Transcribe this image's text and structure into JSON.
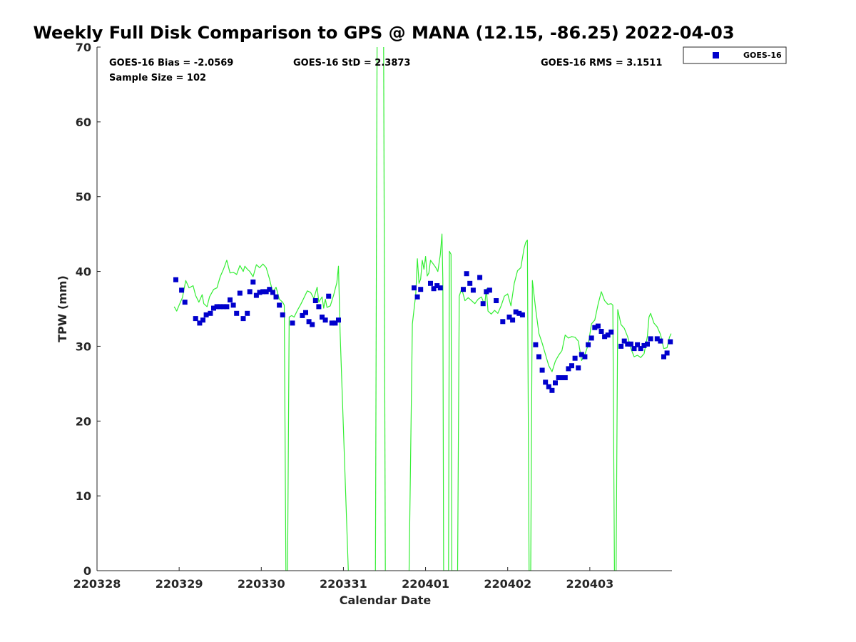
{
  "chart_data": {
    "type": "scatter",
    "title": "Weekly Full Disk Comparison to GPS @ MANA (12.15, -86.25) 2022-04-03",
    "xlabel": "Calendar Date",
    "ylabel": "TPW (mm)",
    "xlim": [
      0,
      7
    ],
    "ylim": [
      0,
      70
    ],
    "x_ticks": [
      {
        "value": 0,
        "label": "220328"
      },
      {
        "value": 1,
        "label": "220329"
      },
      {
        "value": 2,
        "label": "220330"
      },
      {
        "value": 3,
        "label": "220331"
      },
      {
        "value": 4,
        "label": "220401"
      },
      {
        "value": 5,
        "label": "220402"
      },
      {
        "value": 6,
        "label": "220403"
      }
    ],
    "y_ticks": [
      {
        "value": 0,
        "label": "0"
      },
      {
        "value": 10,
        "label": "10"
      },
      {
        "value": 20,
        "label": "20"
      },
      {
        "value": 30,
        "label": "30"
      },
      {
        "value": 40,
        "label": "40"
      },
      {
        "value": 50,
        "label": "50"
      },
      {
        "value": 60,
        "label": "60"
      },
      {
        "value": 70,
        "label": "70"
      }
    ],
    "stats": {
      "bias": "GOES-16 Bias = -2.0569",
      "std": "GOES-16 StD = 2.3873",
      "rms": "GOES-16 RMS = 3.1511",
      "sample": "Sample Size = 102"
    },
    "legend": {
      "label": "GOES-16",
      "location": "top-right outside"
    },
    "colors": {
      "goes": "#0000cc",
      "gps": "#33ee33",
      "axis": "#262626"
    },
    "series": [
      {
        "name": "GOES-16",
        "kind": "markers",
        "points": [
          [
            0.96,
            38.9
          ],
          [
            1.03,
            37.5
          ],
          [
            1.07,
            35.9
          ],
          [
            1.2,
            33.7
          ],
          [
            1.25,
            33.1
          ],
          [
            1.29,
            33.5
          ],
          [
            1.33,
            34.2
          ],
          [
            1.38,
            34.4
          ],
          [
            1.42,
            35.1
          ],
          [
            1.46,
            35.3
          ],
          [
            1.5,
            35.3
          ],
          [
            1.54,
            35.3
          ],
          [
            1.58,
            35.3
          ],
          [
            1.62,
            36.2
          ],
          [
            1.66,
            35.5
          ],
          [
            1.7,
            34.4
          ],
          [
            1.74,
            37.1
          ],
          [
            1.78,
            33.7
          ],
          [
            1.83,
            34.4
          ],
          [
            1.86,
            37.3
          ],
          [
            1.9,
            38.6
          ],
          [
            1.94,
            36.8
          ],
          [
            1.98,
            37.2
          ],
          [
            2.02,
            37.3
          ],
          [
            2.06,
            37.3
          ],
          [
            2.1,
            37.6
          ],
          [
            2.14,
            37.2
          ],
          [
            2.18,
            36.6
          ],
          [
            2.22,
            35.5
          ],
          [
            2.26,
            34.2
          ],
          [
            2.38,
            33.1
          ],
          [
            2.5,
            34.1
          ],
          [
            2.54,
            34.5
          ],
          [
            2.58,
            33.3
          ],
          [
            2.62,
            32.9
          ],
          [
            2.66,
            36.1
          ],
          [
            2.7,
            35.3
          ],
          [
            2.74,
            33.9
          ],
          [
            2.78,
            33.5
          ],
          [
            2.82,
            36.7
          ],
          [
            2.86,
            33.1
          ],
          [
            2.9,
            33.1
          ],
          [
            2.94,
            33.5
          ],
          [
            3.86,
            37.8
          ],
          [
            3.9,
            36.6
          ],
          [
            3.94,
            37.6
          ],
          [
            4.06,
            38.4
          ],
          [
            4.1,
            37.7
          ],
          [
            4.14,
            38.1
          ],
          [
            4.18,
            37.8
          ],
          [
            4.46,
            37.6
          ],
          [
            4.5,
            39.7
          ],
          [
            4.54,
            38.4
          ],
          [
            4.58,
            37.5
          ],
          [
            4.66,
            39.2
          ],
          [
            4.7,
            35.7
          ],
          [
            4.74,
            37.3
          ],
          [
            4.78,
            37.5
          ],
          [
            4.86,
            36.1
          ],
          [
            4.94,
            33.3
          ],
          [
            5.02,
            33.9
          ],
          [
            5.06,
            33.5
          ],
          [
            5.1,
            34.6
          ],
          [
            5.14,
            34.4
          ],
          [
            5.18,
            34.2
          ],
          [
            5.34,
            30.2
          ],
          [
            5.38,
            28.6
          ],
          [
            5.42,
            26.8
          ],
          [
            5.46,
            25.2
          ],
          [
            5.5,
            24.6
          ],
          [
            5.54,
            24.1
          ],
          [
            5.58,
            25.1
          ],
          [
            5.62,
            25.8
          ],
          [
            5.66,
            25.8
          ],
          [
            5.7,
            25.8
          ],
          [
            5.74,
            27.0
          ],
          [
            5.78,
            27.4
          ],
          [
            5.82,
            28.4
          ],
          [
            5.86,
            27.1
          ],
          [
            5.9,
            28.9
          ],
          [
            5.94,
            28.6
          ],
          [
            5.98,
            30.2
          ],
          [
            6.02,
            31.1
          ],
          [
            6.06,
            32.5
          ],
          [
            6.1,
            32.7
          ],
          [
            6.14,
            32.0
          ],
          [
            6.18,
            31.3
          ],
          [
            6.22,
            31.5
          ],
          [
            6.26,
            31.9
          ],
          [
            6.38,
            30.0
          ],
          [
            6.42,
            30.7
          ],
          [
            6.46,
            30.3
          ],
          [
            6.5,
            30.3
          ],
          [
            6.54,
            29.7
          ],
          [
            6.58,
            30.2
          ],
          [
            6.62,
            29.7
          ],
          [
            6.66,
            30.1
          ],
          [
            6.7,
            30.3
          ],
          [
            6.74,
            31.0
          ],
          [
            6.82,
            31.0
          ],
          [
            6.86,
            30.7
          ],
          [
            6.9,
            28.6
          ],
          [
            6.94,
            29.1
          ],
          [
            6.98,
            30.6
          ]
        ]
      },
      {
        "name": "GPS",
        "kind": "line",
        "segments": [
          [
            [
              0.94,
              35.3
            ],
            [
              0.97,
              34.7
            ],
            [
              1.0,
              35.5
            ],
            [
              1.04,
              36.5
            ],
            [
              1.08,
              38.8
            ],
            [
              1.12,
              37.8
            ],
            [
              1.17,
              38.1
            ],
            [
              1.2,
              36.8
            ],
            [
              1.24,
              35.9
            ],
            [
              1.28,
              36.9
            ],
            [
              1.3,
              35.7
            ],
            [
              1.34,
              35.3
            ],
            [
              1.37,
              36.6
            ],
            [
              1.42,
              37.6
            ],
            [
              1.46,
              37.8
            ],
            [
              1.5,
              39.3
            ],
            [
              1.54,
              40.3
            ],
            [
              1.58,
              41.5
            ],
            [
              1.62,
              39.8
            ],
            [
              1.66,
              39.9
            ],
            [
              1.7,
              39.6
            ],
            [
              1.74,
              40.8
            ],
            [
              1.78,
              40.0
            ],
            [
              1.8,
              40.7
            ],
            [
              1.83,
              40.3
            ],
            [
              1.86,
              40.0
            ],
            [
              1.9,
              39.3
            ],
            [
              1.94,
              40.9
            ],
            [
              1.98,
              40.5
            ],
            [
              2.02,
              41.0
            ],
            [
              2.06,
              40.5
            ],
            [
              2.1,
              39.0
            ],
            [
              2.14,
              37.2
            ],
            [
              2.18,
              37.9
            ],
            [
              2.22,
              36.3
            ],
            [
              2.26,
              35.9
            ],
            [
              2.28,
              35.5
            ],
            [
              2.3,
              0
            ],
            [
              2.32,
              0
            ],
            [
              2.34,
              33.9
            ],
            [
              2.37,
              34.1
            ],
            [
              2.4,
              33.9
            ],
            [
              2.44,
              34.8
            ],
            [
              2.48,
              35.6
            ],
            [
              2.52,
              36.5
            ],
            [
              2.56,
              37.4
            ],
            [
              2.6,
              37.2
            ],
            [
              2.64,
              36.4
            ],
            [
              2.68,
              37.9
            ],
            [
              2.7,
              35.9
            ],
            [
              2.74,
              36.6
            ],
            [
              2.76,
              35.1
            ],
            [
              2.78,
              36.3
            ],
            [
              2.8,
              35.2
            ],
            [
              2.84,
              35.4
            ],
            [
              2.88,
              36.8
            ],
            [
              2.92,
              38.5
            ],
            [
              2.94,
              40.7
            ],
            [
              2.96,
              31.8
            ],
            [
              3.06,
              0
            ]
          ],
          [
            [
              3.39,
              0
            ],
            [
              3.41,
              70
            ]
          ],
          [
            [
              3.49,
              70
            ],
            [
              3.51,
              0
            ]
          ],
          [
            [
              3.8,
              0
            ],
            [
              3.84,
              33.0
            ],
            [
              3.88,
              36.9
            ],
            [
              3.9,
              41.7
            ],
            [
              3.92,
              38.4
            ],
            [
              3.94,
              39.0
            ],
            [
              3.96,
              41.5
            ],
            [
              3.98,
              40.3
            ],
            [
              4.0,
              42.0
            ],
            [
              4.02,
              39.4
            ],
            [
              4.04,
              39.8
            ],
            [
              4.06,
              41.5
            ],
            [
              4.1,
              40.9
            ],
            [
              4.12,
              40.6
            ],
            [
              4.15,
              40.0
            ],
            [
              4.18,
              42.3
            ],
            [
              4.2,
              45.0
            ],
            [
              4.21,
              38.8
            ],
            [
              4.22,
              0
            ],
            [
              4.28,
              0
            ],
            [
              4.29,
              42.7
            ],
            [
              4.31,
              42.3
            ],
            [
              4.32,
              0
            ],
            [
              4.39,
              0
            ],
            [
              4.41,
              36.7
            ],
            [
              4.44,
              37.7
            ],
            [
              4.48,
              36.1
            ],
            [
              4.52,
              36.5
            ],
            [
              4.56,
              36.1
            ],
            [
              4.6,
              35.7
            ],
            [
              4.64,
              36.3
            ],
            [
              4.68,
              36.6
            ],
            [
              4.72,
              35.5
            ],
            [
              4.74,
              37.7
            ],
            [
              4.76,
              34.7
            ],
            [
              4.8,
              34.3
            ],
            [
              4.84,
              34.8
            ],
            [
              4.88,
              34.4
            ],
            [
              4.92,
              35.4
            ],
            [
              4.96,
              36.7
            ],
            [
              5.0,
              37.0
            ],
            [
              5.04,
              35.4
            ],
            [
              5.08,
              38.4
            ],
            [
              5.12,
              40.1
            ],
            [
              5.16,
              40.5
            ],
            [
              5.2,
              43.1
            ],
            [
              5.22,
              43.9
            ],
            [
              5.24,
              44.2
            ],
            [
              5.26,
              0
            ],
            [
              5.28,
              0
            ],
            [
              5.3,
              38.8
            ],
            [
              5.34,
              35.0
            ],
            [
              5.38,
              31.7
            ],
            [
              5.42,
              30.4
            ],
            [
              5.46,
              28.9
            ],
            [
              5.5,
              27.4
            ],
            [
              5.54,
              26.6
            ],
            [
              5.58,
              28.0
            ],
            [
              5.62,
              28.8
            ],
            [
              5.66,
              29.4
            ],
            [
              5.7,
              31.5
            ],
            [
              5.74,
              31.1
            ],
            [
              5.78,
              31.3
            ],
            [
              5.82,
              31.2
            ],
            [
              5.86,
              30.7
            ],
            [
              5.9,
              28.1
            ],
            [
              5.94,
              28.9
            ],
            [
              5.98,
              30.2
            ],
            [
              6.02,
              33.0
            ],
            [
              6.06,
              33.5
            ],
            [
              6.1,
              35.6
            ],
            [
              6.14,
              37.3
            ],
            [
              6.18,
              36.1
            ],
            [
              6.22,
              35.6
            ],
            [
              6.26,
              35.7
            ],
            [
              6.28,
              35.5
            ],
            [
              6.3,
              0
            ],
            [
              6.32,
              0
            ],
            [
              6.34,
              34.9
            ],
            [
              6.38,
              32.9
            ],
            [
              6.42,
              32.4
            ],
            [
              6.46,
              31.3
            ],
            [
              6.5,
              29.7
            ],
            [
              6.54,
              28.6
            ],
            [
              6.58,
              28.8
            ],
            [
              6.62,
              28.5
            ],
            [
              6.66,
              29.0
            ],
            [
              6.7,
              31.3
            ],
            [
              6.72,
              33.9
            ],
            [
              6.74,
              34.4
            ],
            [
              6.78,
              33.1
            ],
            [
              6.82,
              32.6
            ],
            [
              6.86,
              31.6
            ],
            [
              6.9,
              29.7
            ],
            [
              6.94,
              29.8
            ],
            [
              6.97,
              31.2
            ],
            [
              6.99,
              31.7
            ]
          ]
        ]
      }
    ]
  }
}
